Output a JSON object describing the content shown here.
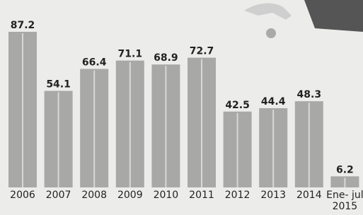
{
  "chart_data": {
    "type": "bar",
    "categories": [
      "2006",
      "2007",
      "2008",
      "2009",
      "2010",
      "2011",
      "2012",
      "2013",
      "2014",
      "Ene- jul\n2015"
    ],
    "values": [
      87.2,
      54.1,
      66.4,
      71.1,
      68.9,
      72.7,
      42.5,
      44.4,
      48.3,
      6.2
    ],
    "color": "#a8a8a6"
  }
}
